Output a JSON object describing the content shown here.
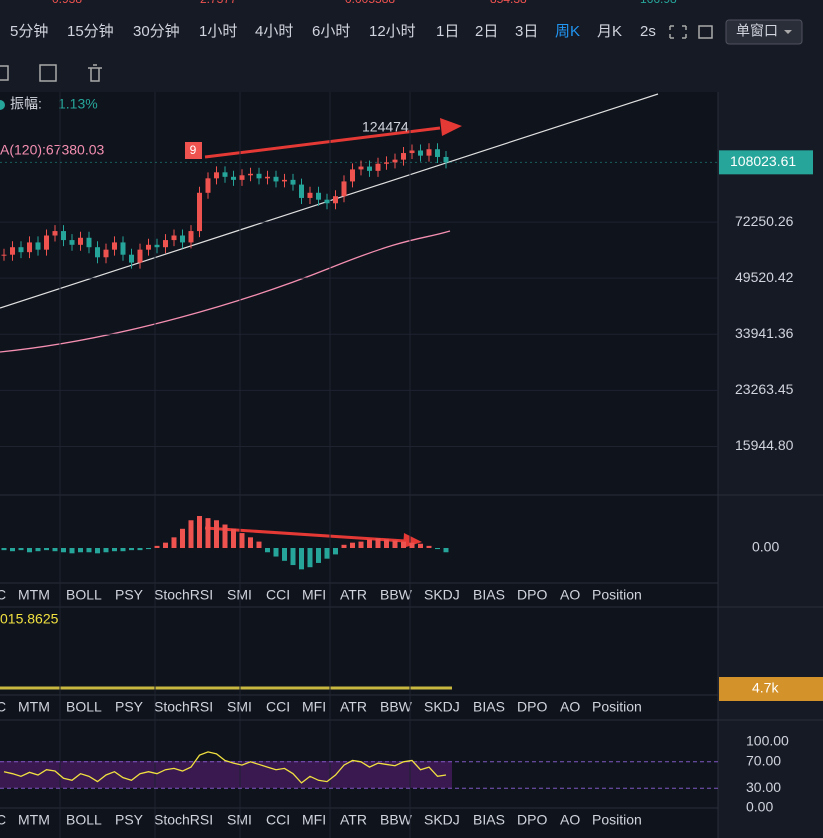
{
  "toolbar": {
    "top_cut": [
      "0.938",
      "2.7377",
      "0.005588",
      "854.38",
      "166.98"
    ],
    "intervals": [
      "5分钟",
      "15分钟",
      "30分钟",
      "1小时",
      "4小时",
      "6小时",
      "12小时",
      "1日",
      "2日",
      "3日",
      "周K",
      "月K",
      "2s"
    ],
    "active": "周K",
    "window": "单窗口"
  },
  "info": {
    "amp_label": "振幅:",
    "amp_value": "1.13%",
    "ma120": "A(120):67380.03",
    "high_label": "124474",
    "signal": "9"
  },
  "chart_data": {
    "type": "candlestick",
    "log": true,
    "closes": [
      58000,
      61000,
      59000,
      63000,
      60000,
      66000,
      68000,
      64000,
      62000,
      65000,
      61000,
      57000,
      60000,
      63000,
      58000,
      55000,
      60000,
      62000,
      61000,
      64000,
      66000,
      63000,
      68000,
      88000,
      97000,
      101000,
      98000,
      96000,
      99000,
      100000,
      97000,
      98000,
      95000,
      96000,
      93000,
      85000,
      88000,
      84000,
      82000,
      86000,
      95000,
      103000,
      105000,
      102000,
      107000,
      108000,
      110000,
      115000,
      117000,
      113000,
      118000,
      112000,
      108000
    ],
    "up_color": "#ef5350",
    "down_color": "#26a69a",
    "ylim": [
      11500,
      170000
    ],
    "yticks": [
      72250.26,
      49520.42,
      33941.36,
      23263.45,
      {
        "value": 15944.8,
        "label": "15944.80"
      }
    ],
    "last_price": 108023.61
  },
  "macd": {
    "hist": [
      -2,
      -3,
      -2,
      -4,
      -3,
      -2,
      -3,
      -4,
      -5,
      -4,
      -4,
      -5,
      -4,
      -3,
      -3,
      -2,
      -2,
      -1,
      2,
      5,
      10,
      18,
      26,
      30,
      28,
      26,
      22,
      18,
      14,
      10,
      6,
      -4,
      -8,
      -12,
      -16,
      -20,
      -18,
      -14,
      -10,
      -6,
      3,
      5,
      6,
      8,
      9,
      8,
      7,
      6,
      5,
      4,
      2,
      -1,
      -4
    ],
    "ylim": [
      -30,
      45
    ],
    "yticks": [
      {
        "value": 0,
        "label": "0.00"
      }
    ]
  },
  "volume": {
    "label": "015.8625",
    "last": "4.7k"
  },
  "rsi": {
    "values": [
      55,
      52,
      48,
      54,
      50,
      58,
      56,
      45,
      42,
      52,
      48,
      40,
      50,
      55,
      46,
      42,
      52,
      55,
      52,
      58,
      60,
      56,
      62,
      80,
      85,
      82,
      72,
      68,
      65,
      70,
      66,
      62,
      58,
      60,
      52,
      38,
      48,
      42,
      40,
      50,
      65,
      72,
      70,
      62,
      68,
      66,
      64,
      70,
      72,
      58,
      62,
      48,
      50
    ],
    "ylim": [
      0,
      100
    ],
    "yticks": [
      {
        "value": 100,
        "label": "100.00"
      },
      {
        "value": 70,
        "label": "70.00"
      },
      {
        "value": 30,
        "label": "30.00"
      },
      {
        "value": 0,
        "label": "0.00"
      }
    ]
  },
  "tabs": [
    "C",
    "MTM",
    "BOLL",
    "PSY",
    "StochRSI",
    "SMI",
    "CCI",
    "MFI",
    "ATR",
    "BBW",
    "SKDJ",
    "BIAS",
    "DPO",
    "AO",
    "Position"
  ]
}
